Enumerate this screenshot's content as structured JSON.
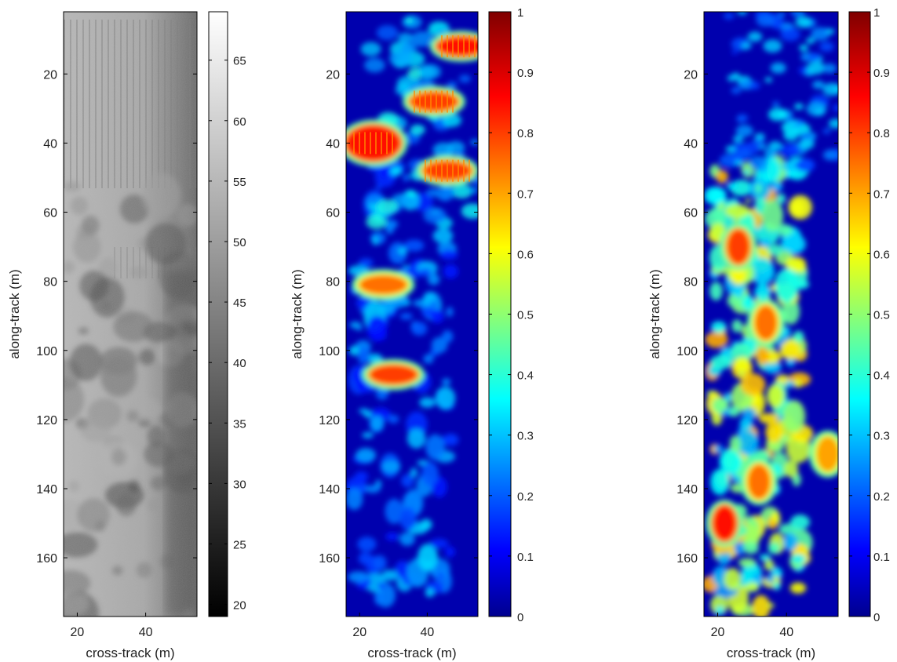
{
  "chart_data": [
    {
      "type": "heatmap",
      "panel": "left",
      "colormap": "gray",
      "xlabel": "cross-track (m)",
      "ylabel": "along-track (m)",
      "xticks": [
        20,
        40
      ],
      "yticks": [
        20,
        40,
        60,
        80,
        100,
        120,
        140,
        160
      ],
      "xlim": [
        16,
        55
      ],
      "ylim": [
        2,
        177
      ],
      "y_reversed": true,
      "colorbar": {
        "min": 19,
        "max": 69,
        "ticks": [
          20,
          25,
          30,
          35,
          40,
          45,
          50,
          55,
          60,
          65
        ]
      },
      "description": "Grayscale sonar intensity; sand ripples in upper part, rocky seabed below"
    },
    {
      "type": "heatmap",
      "panel": "middle",
      "colormap": "jet",
      "xlabel": "cross-track (m)",
      "ylabel": "along-track (m)",
      "xticks": [
        20,
        40
      ],
      "yticks": [
        20,
        40,
        60,
        80,
        100,
        120,
        140,
        160
      ],
      "xlim": [
        16,
        55
      ],
      "ylim": [
        2,
        177
      ],
      "y_reversed": true,
      "colorbar": {
        "min": 0,
        "max": 1,
        "ticks": [
          "0",
          "0.1",
          "0.2",
          "0.3",
          "0.4",
          "0.5",
          "0.6",
          "0.7",
          "0.8",
          "0.9",
          "1"
        ]
      },
      "hot_regions": [
        {
          "x": 24,
          "y": 40,
          "value": 0.85
        },
        {
          "x": 42,
          "y": 28,
          "value": 0.8
        },
        {
          "x": 50,
          "y": 12,
          "value": 0.85
        },
        {
          "x": 46,
          "y": 48,
          "value": 0.8
        },
        {
          "x": 27,
          "y": 81,
          "value": 0.75
        },
        {
          "x": 30,
          "y": 107,
          "value": 0.8
        }
      ]
    },
    {
      "type": "heatmap",
      "panel": "right",
      "colormap": "jet",
      "xlabel": "cross-track (m)",
      "ylabel": "along-track (m)",
      "xticks": [
        20,
        40
      ],
      "yticks": [
        20,
        40,
        60,
        80,
        100,
        120,
        140,
        160
      ],
      "xlim": [
        16,
        55
      ],
      "ylim": [
        2,
        177
      ],
      "y_reversed": true,
      "colorbar": {
        "min": 0,
        "max": 1,
        "ticks": [
          "0",
          "0.1",
          "0.2",
          "0.3",
          "0.4",
          "0.5",
          "0.6",
          "0.7",
          "0.8",
          "0.9",
          "1"
        ]
      },
      "hot_regions": [
        {
          "x": 26,
          "y": 70,
          "value": 0.8
        },
        {
          "x": 34,
          "y": 92,
          "value": 0.75
        },
        {
          "x": 22,
          "y": 150,
          "value": 0.85
        },
        {
          "x": 32,
          "y": 138,
          "value": 0.75
        },
        {
          "x": 52,
          "y": 130,
          "value": 0.7
        }
      ]
    }
  ]
}
